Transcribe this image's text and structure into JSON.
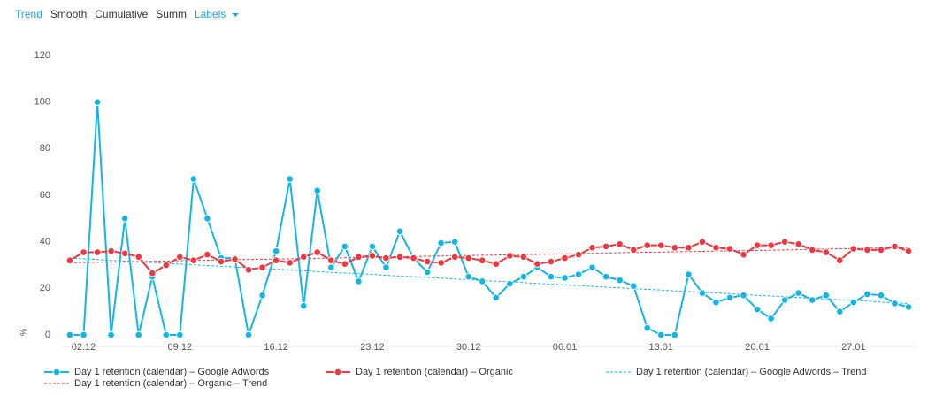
{
  "toolbar": {
    "items": [
      "Trend",
      "Smooth",
      "Cumulative",
      "Summ",
      "Labels"
    ]
  },
  "chart_data": {
    "type": "line",
    "y_label": "%",
    "categories": [
      null,
      "02.12",
      null,
      null,
      null,
      null,
      null,
      null,
      "09.12",
      null,
      null,
      null,
      null,
      null,
      null,
      "16.12",
      null,
      null,
      null,
      null,
      null,
      null,
      "23.12",
      null,
      null,
      null,
      null,
      null,
      null,
      "30.12",
      null,
      null,
      null,
      null,
      null,
      null,
      "06.01",
      null,
      null,
      null,
      null,
      null,
      null,
      "13.01",
      null,
      null,
      null,
      null,
      null,
      null,
      "20.01",
      null,
      null,
      null,
      null,
      null,
      null,
      "27.01",
      null,
      null,
      null,
      null
    ],
    "ylim": [
      0,
      120
    ],
    "yticks": [
      0,
      20,
      40,
      60,
      80,
      100,
      120
    ],
    "grid": false,
    "series": [
      {
        "name": "Day 1 retention (calendar) – Google Adwords",
        "color": "#12b6e6",
        "style": "solid",
        "markers": true,
        "values": [
          0,
          0,
          100,
          0,
          50,
          0,
          25,
          0,
          0,
          67,
          50,
          33,
          33,
          0,
          17,
          36,
          67,
          12.5,
          62,
          29,
          38,
          23,
          38,
          29,
          44.5,
          33,
          27,
          39.5,
          40,
          25,
          23,
          16,
          22,
          25,
          29,
          25,
          24.5,
          26,
          29,
          25,
          23.5,
          21,
          3,
          0,
          0,
          26,
          18,
          14,
          16,
          17,
          11,
          7,
          15,
          18,
          15,
          17,
          10,
          14,
          17.5,
          17,
          13.5,
          12
        ]
      },
      {
        "name": "Day 1 retention (calendar) – Organic",
        "color": "#f0363f",
        "style": "solid",
        "markers": true,
        "values": [
          32,
          35.5,
          35.5,
          36,
          35,
          33.5,
          26.5,
          30,
          33.5,
          32,
          34.5,
          31.5,
          32.5,
          28,
          29,
          32,
          31,
          33.5,
          35.5,
          32,
          30.5,
          33.5,
          34,
          33,
          33.5,
          33,
          31.5,
          31,
          33.5,
          33,
          32,
          30.5,
          34,
          33.5,
          30.5,
          31.5,
          33,
          34.5,
          37.5,
          38,
          39,
          36.5,
          38.5,
          38.5,
          37.5,
          37.5,
          40,
          37.5,
          37,
          34.5,
          38.5,
          38.5,
          40,
          39,
          36.5,
          35.5,
          32,
          37,
          36.5,
          36.5,
          38,
          36
        ]
      },
      {
        "name": "Day 1 retention (calendar) – Google Adwords – Trend",
        "color": "#12b6e6",
        "style": "dashed",
        "markers": false,
        "values": [
          33.0,
          32.7,
          32.4,
          32.0,
          31.7,
          31.4,
          31.1,
          30.8,
          30.4,
          30.1,
          29.8,
          29.5,
          29.2,
          28.8,
          28.5,
          28.2,
          27.9,
          27.6,
          27.2,
          26.9,
          26.6,
          26.3,
          26.0,
          25.6,
          25.3,
          25.0,
          24.7,
          24.4,
          24.0,
          23.7,
          23.4,
          23.1,
          22.8,
          22.5,
          22.1,
          21.8,
          21.5,
          21.2,
          20.9,
          20.5,
          20.2,
          19.9,
          19.6,
          19.3,
          18.9,
          18.6,
          18.3,
          18.0,
          17.7,
          17.3,
          17.0,
          16.7,
          16.4,
          16.1,
          15.7,
          15.4,
          15.1,
          14.8,
          14.5,
          14.1,
          13.8,
          13.5
        ]
      },
      {
        "name": "Day 1 retention (calendar) – Organic – Trend",
        "color": "#f0363f",
        "style": "dashed",
        "markers": false,
        "values": [
          31.0,
          31.1,
          31.2,
          31.3,
          31.4,
          31.5,
          31.6,
          31.7,
          31.9,
          32.0,
          32.1,
          32.2,
          32.3,
          32.4,
          32.5,
          32.6,
          32.7,
          32.8,
          32.9,
          33.0,
          33.1,
          33.2,
          33.3,
          33.5,
          33.6,
          33.7,
          33.8,
          33.9,
          34.0,
          34.1,
          34.2,
          34.3,
          34.4,
          34.5,
          34.6,
          34.7,
          34.8,
          34.9,
          35.0,
          35.2,
          35.3,
          35.4,
          35.5,
          35.6,
          35.7,
          35.8,
          35.9,
          36.0,
          36.1,
          36.2,
          36.3,
          36.4,
          36.5,
          36.6,
          36.8,
          36.9,
          37.0,
          37.1,
          37.2,
          37.3,
          37.4,
          37.5
        ]
      }
    ]
  }
}
